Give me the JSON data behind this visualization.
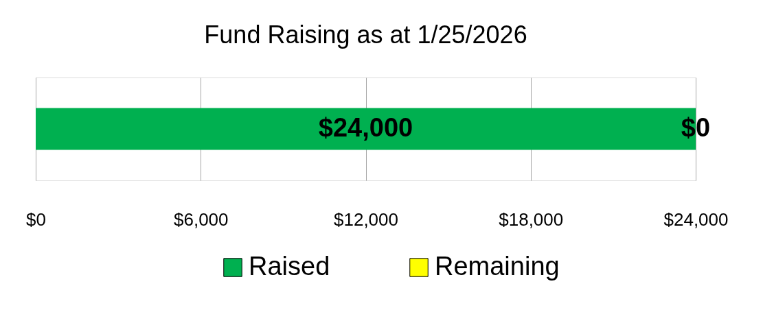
{
  "chart_data": {
    "type": "bar",
    "title": "Fund Raising as at 1/25/2026",
    "orientation": "horizontal",
    "stacked": true,
    "categories": [
      null
    ],
    "series": [
      {
        "name": "Raised",
        "color": "#00b050",
        "values": [
          24000
        ],
        "value_labels": [
          "$24,000"
        ]
      },
      {
        "name": "Remaining",
        "color": "#ffff00",
        "values": [
          0
        ],
        "value_labels": [
          "$0"
        ]
      }
    ],
    "xlim": [
      0,
      24000
    ],
    "xticks": [
      {
        "value": 0,
        "label": "$0"
      },
      {
        "value": 6000,
        "label": "$6,000"
      },
      {
        "value": 12000,
        "label": "$12,000"
      },
      {
        "value": 18000,
        "label": "$18,000"
      },
      {
        "value": 24000,
        "label": "$24,000"
      }
    ],
    "grid": "x",
    "legend": "bottom"
  }
}
